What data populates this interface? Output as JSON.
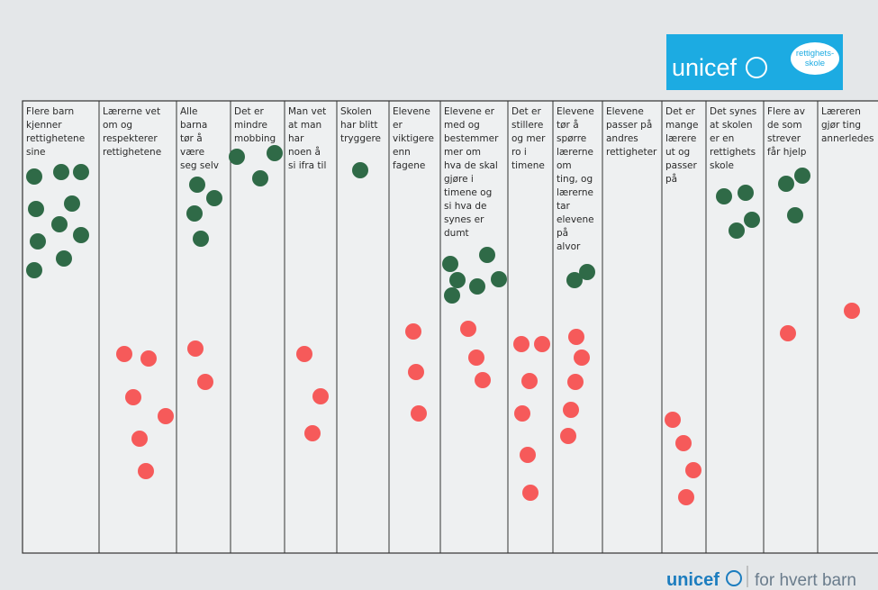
{
  "logo": {
    "name": "unicef",
    "badge": [
      "rettighets-",
      "skole"
    ]
  },
  "footer": {
    "name": "unicef",
    "tagline": "for hvert barn"
  },
  "columns": [
    {
      "lines": [
        "Flere barn",
        "kjenner",
        "rettighetene",
        "sine"
      ]
    },
    {
      "lines": [
        "Lærerne vet",
        "om og",
        "respekterer",
        "rettighetene"
      ]
    },
    {
      "lines": [
        "Alle",
        "barna",
        "tør å",
        "være",
        "seg selv"
      ]
    },
    {
      "lines": [
        "Det er",
        "mindre",
        "mobbing"
      ]
    },
    {
      "lines": [
        "Man vet",
        "at man",
        "har",
        "noen å",
        "si ifra til"
      ]
    },
    {
      "lines": [
        "Skolen",
        "har blitt",
        "tryggere"
      ]
    },
    {
      "lines": [
        "Elevene",
        "er",
        "viktigere",
        "enn",
        "fagene"
      ]
    },
    {
      "lines": [
        "Elevene er",
        "med og",
        "bestemmer",
        "mer om",
        "hva de skal",
        "gjøre i",
        "timene og",
        "si hva de",
        "synes er",
        "dumt"
      ]
    },
    {
      "lines": [
        "Det er",
        "stillere",
        "og mer",
        "ro i",
        "timene"
      ]
    },
    {
      "lines": [
        "Elevene",
        "tør å",
        "spørre",
        "lærerne",
        "om",
        "ting, og",
        "lærerne",
        "tar",
        "elevene",
        "på",
        "alvor"
      ]
    },
    {
      "lines": [
        "Elevene",
        "passer på",
        "andres",
        "rettigheter"
      ]
    },
    {
      "lines": [
        "Det er",
        "mange",
        "lærere",
        "ut og",
        "passer",
        "på"
      ]
    },
    {
      "lines": [
        "Det synes",
        "at skolen",
        "er en",
        "rettighets",
        "skole"
      ]
    },
    {
      "lines": [
        "Flere av",
        "de som",
        "strever",
        "får hjelp"
      ]
    },
    {
      "lines": [
        "Læreren",
        "gjør ting",
        "annerledes"
      ]
    }
  ]
}
